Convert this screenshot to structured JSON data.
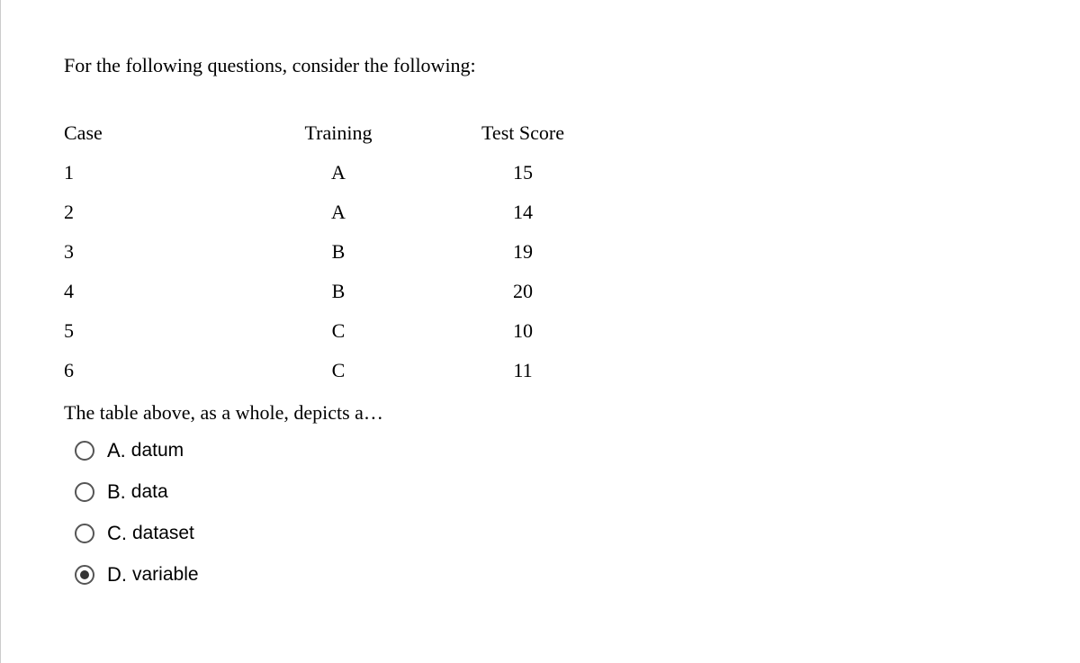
{
  "intro": "For the following questions, consider the following:",
  "table": {
    "headers": {
      "case": "Case",
      "training": "Training",
      "score": "Test Score"
    },
    "rows": [
      {
        "case": "1",
        "training": "A",
        "score": "15"
      },
      {
        "case": "2",
        "training": "A",
        "score": "14"
      },
      {
        "case": "3",
        "training": "B",
        "score": "19"
      },
      {
        "case": "4",
        "training": "B",
        "score": "20"
      },
      {
        "case": "5",
        "training": "C",
        "score": "10"
      },
      {
        "case": "6",
        "training": "C",
        "score": "11"
      }
    ]
  },
  "question": "The table above, as a whole, depicts a…",
  "options": [
    {
      "letter": "A.",
      "text": "datum",
      "selected": false
    },
    {
      "letter": "B.",
      "text": "data",
      "selected": false
    },
    {
      "letter": "C.",
      "text": "dataset",
      "selected": false
    },
    {
      "letter": "D.",
      "text": "variable",
      "selected": true
    }
  ]
}
